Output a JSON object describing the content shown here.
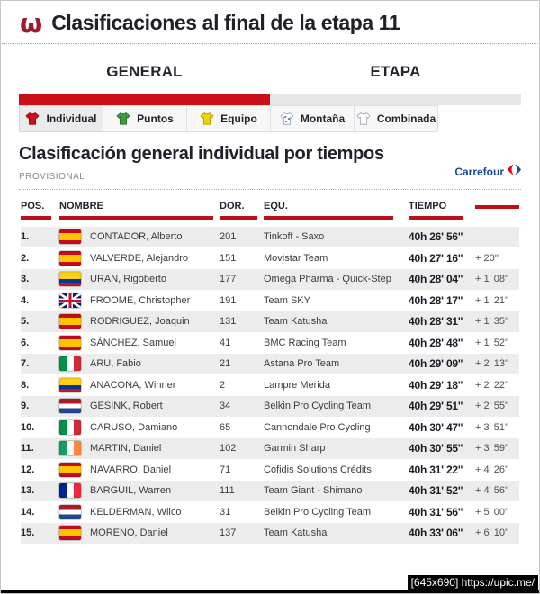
{
  "page": {
    "title": "Clasificaciones al final de la etapa 11"
  },
  "tabs": [
    {
      "label": "GENERAL",
      "active": true
    },
    {
      "label": "ETAPA",
      "active": false
    }
  ],
  "subtabs": [
    {
      "label": "Individual",
      "jersey": "red",
      "active": true
    },
    {
      "label": "Puntos",
      "jersey": "green",
      "active": false
    },
    {
      "label": "Equipo",
      "jersey": "yellow",
      "active": false
    },
    {
      "label": "Montaña",
      "jersey": "polka",
      "active": false
    },
    {
      "label": "Combinada",
      "jersey": "white",
      "active": false
    }
  ],
  "section": {
    "heading": "Clasificación general individual por tiempos",
    "subheading": "PROVISIONAL",
    "sponsor": "Carrefour"
  },
  "standings": {
    "columns": [
      "POS.",
      "NOMBRE",
      "DOR.",
      "EQU.",
      "TIEMPO",
      ""
    ],
    "rows": [
      {
        "pos": "1.",
        "flag": "esp",
        "name": "CONTADOR, Alberto",
        "dor": "201",
        "team": "Tinkoff - Saxo",
        "time": "40h 26' 56''",
        "gap": ""
      },
      {
        "pos": "2.",
        "flag": "esp",
        "name": "VALVERDE, Alejandro",
        "dor": "151",
        "team": "Movistar Team",
        "time": "40h 27' 16''",
        "gap": "+ 20''"
      },
      {
        "pos": "3.",
        "flag": "col",
        "name": "URAN, Rigoberto",
        "dor": "177",
        "team": "Omega Pharma - Quick-Step",
        "time": "40h 28' 04''",
        "gap": "+ 1' 08''"
      },
      {
        "pos": "4.",
        "flag": "gbr",
        "name": "FROOME, Christopher",
        "dor": "191",
        "team": "Team SKY",
        "time": "40h 28' 17''",
        "gap": "+ 1' 21''"
      },
      {
        "pos": "5.",
        "flag": "esp",
        "name": "RODRIGUEZ, Joaquin",
        "dor": "131",
        "team": "Team Katusha",
        "time": "40h 28' 31''",
        "gap": "+ 1' 35''"
      },
      {
        "pos": "6.",
        "flag": "esp",
        "name": "SÁNCHEZ, Samuel",
        "dor": "41",
        "team": "BMC Racing Team",
        "time": "40h 28' 48''",
        "gap": "+ 1' 52''"
      },
      {
        "pos": "7.",
        "flag": "ita",
        "name": "ARU, Fabio",
        "dor": "21",
        "team": "Astana Pro Team",
        "time": "40h 29' 09''",
        "gap": "+ 2' 13''"
      },
      {
        "pos": "8.",
        "flag": "col",
        "name": "ANACONA, Winner",
        "dor": "2",
        "team": "Lampre Merida",
        "time": "40h 29' 18''",
        "gap": "+ 2' 22''"
      },
      {
        "pos": "9.",
        "flag": "ned",
        "name": "GESINK, Robert",
        "dor": "34",
        "team": "Belkin Pro Cycling Team",
        "time": "40h 29' 51''",
        "gap": "+ 2' 55''"
      },
      {
        "pos": "10.",
        "flag": "ita",
        "name": "CARUSO, Damiano",
        "dor": "65",
        "team": "Cannondale Pro Cycling",
        "time": "40h 30' 47''",
        "gap": "+ 3' 51''"
      },
      {
        "pos": "11.",
        "flag": "irl",
        "name": "MARTIN, Daniel",
        "dor": "102",
        "team": "Garmin Sharp",
        "time": "40h 30' 55''",
        "gap": "+ 3' 59''"
      },
      {
        "pos": "12.",
        "flag": "esp",
        "name": "NAVARRO, Daniel",
        "dor": "71",
        "team": "Cofidis Solutions Crédits",
        "time": "40h 31' 22''",
        "gap": "+ 4' 26''"
      },
      {
        "pos": "13.",
        "flag": "fra",
        "name": "BARGUIL, Warren",
        "dor": "111",
        "team": "Team Giant - Shimano",
        "time": "40h 31' 52''",
        "gap": "+ 4' 56''"
      },
      {
        "pos": "14.",
        "flag": "ned",
        "name": "KELDERMAN, Wilco",
        "dor": "31",
        "team": "Belkin Pro Cycling Team",
        "time": "40h 31' 56''",
        "gap": "+ 5' 00''"
      },
      {
        "pos": "15.",
        "flag": "esp",
        "name": "MORENO, Daniel",
        "dor": "137",
        "team": "Team Katusha",
        "time": "40h 33' 06''",
        "gap": "+ 6' 10''"
      }
    ]
  },
  "watermark": "[645x690] https://upic.me/",
  "colors": {
    "accent_red": "#c81016",
    "header_bar_red": "#bd1016",
    "navy_text": "#23232e",
    "carrefour_blue": "#1b4a9b",
    "row_alt_gray": "#ececec",
    "jersey_red": "#cc1016",
    "jersey_green": "#3f9a3f",
    "jersey_yellow": "#f2d300"
  }
}
